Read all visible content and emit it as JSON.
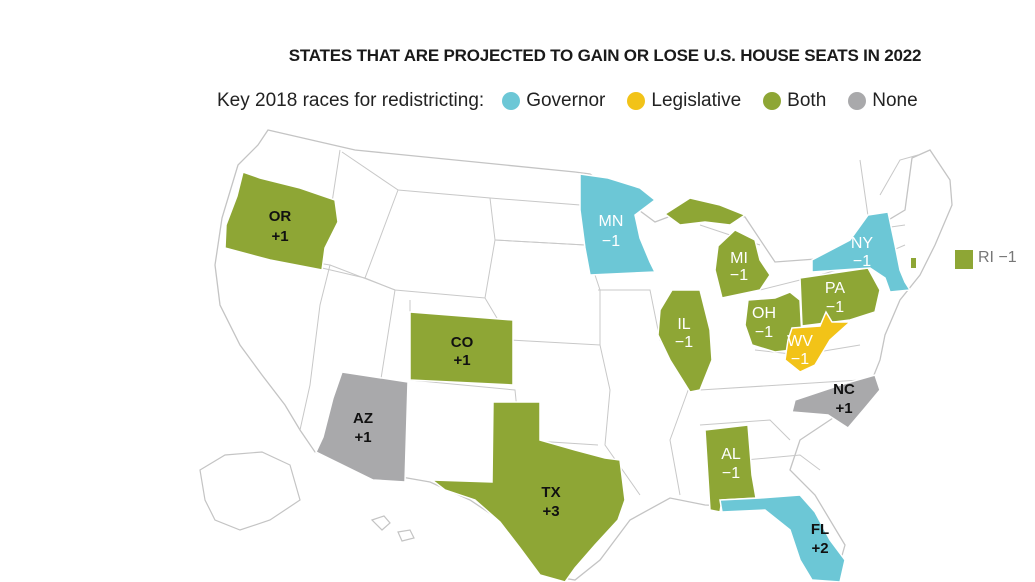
{
  "title": "STATES THAT ARE PROJECTED TO GAIN OR LOSE U.S. HOUSE SEATS IN 2022",
  "legend": {
    "lead": "Key 2018 races for redistricting:",
    "items": [
      {
        "label": "Governor",
        "color": "#6cc7d6"
      },
      {
        "label": "Legislative",
        "color": "#f2c318"
      },
      {
        "label": "Both",
        "color": "#8ea635"
      },
      {
        "label": "None",
        "color": "#a9a9ab"
      }
    ]
  },
  "colors": {
    "governor": "#6cc7d6",
    "legislative": "#f2c318",
    "both": "#8ea635",
    "none": "#a9a9ab",
    "state_border": "#bdbdbd",
    "land": "#ffffff"
  },
  "states": {
    "or": {
      "abbr": "OR",
      "change": "+1",
      "race": "Both"
    },
    "co": {
      "abbr": "CO",
      "change": "+1",
      "race": "Both"
    },
    "az": {
      "abbr": "AZ",
      "change": "+1",
      "race": "None"
    },
    "tx": {
      "abbr": "TX",
      "change": "+3",
      "race": "Both"
    },
    "mn": {
      "abbr": "MN",
      "change": "−1",
      "race": "Governor"
    },
    "mi": {
      "abbr": "MI",
      "change": "−1",
      "race": "Both"
    },
    "il": {
      "abbr": "IL",
      "change": "−1",
      "race": "Both"
    },
    "oh": {
      "abbr": "OH",
      "change": "−1",
      "race": "Both"
    },
    "pa": {
      "abbr": "PA",
      "change": "−1",
      "race": "Both"
    },
    "wv": {
      "abbr": "WV",
      "change": "−1",
      "race": "Legislative"
    },
    "ny": {
      "abbr": "NY",
      "change": "−1",
      "race": "Governor"
    },
    "nc": {
      "abbr": "NC",
      "change": "+1",
      "race": "None"
    },
    "al": {
      "abbr": "AL",
      "change": "−1",
      "race": "Both"
    },
    "fl": {
      "abbr": "FL",
      "change": "+2",
      "race": "Governor"
    },
    "ri": {
      "abbr": "RI",
      "change": "−1",
      "label": "RI −1",
      "race": "Both"
    }
  }
}
